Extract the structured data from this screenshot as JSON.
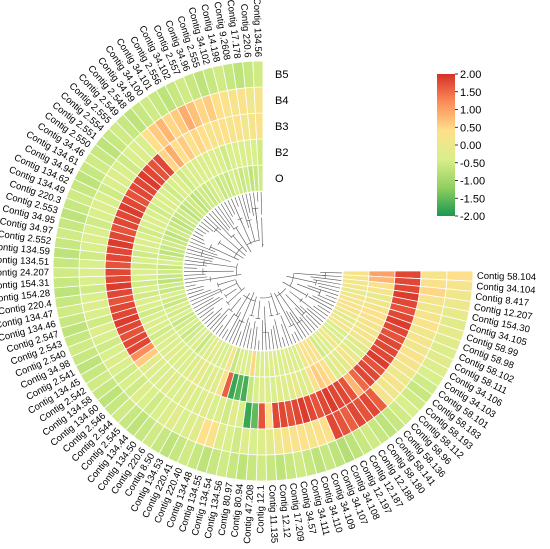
{
  "chart_data": {
    "type": "heatmap",
    "title": "",
    "rings": [
      "O",
      "B2",
      "B3",
      "B4",
      "B5"
    ],
    "colorbar": {
      "min": -2.0,
      "max": 2.0,
      "tick_labels": [
        "2.00",
        "1.50",
        "1.00",
        "0.50",
        "0.00",
        "-0.50",
        "-1.00",
        "-1.50",
        "-2.00"
      ],
      "colors": [
        "#1a9850",
        "#91cf60",
        "#d9ef8b",
        "#fee08b",
        "#fc8d59",
        "#d73027"
      ],
      "legend_position": "top-right"
    },
    "labels": [
      "Contig 58.104",
      "Contig 34.104",
      "Contig 8.417",
      "Contig 12.207",
      "Contig 154.30",
      "Contig 34.105",
      "Contig 58.99",
      "Contig 58.98",
      "Contig 58.102",
      "Contig 58.111",
      "Contig 34.106",
      "Contig 34.103",
      "Contig 58.101",
      "Contig 58.183",
      "Contig 58.193",
      "Contig 58.112",
      "Contig 58.96",
      "Contig 58.136",
      "Contig 58.141",
      "Contig 58.180",
      "Contig 12.188",
      "Contig 12.187",
      "Contig 12.197",
      "Contig 34.108",
      "Contig 34.107",
      "Contig 34.109",
      "Contig 34.110",
      "Contig 34.111",
      "Contig 34.57",
      "Contig 17.209",
      "Contig 12.12",
      "Contig 11.135",
      "Contig 12.1",
      "Contig 47.208",
      "Contig 80.94",
      "Contig 80.97",
      "Contig 134.56",
      "Contig 134.54",
      "Contig 134.55",
      "Contig 134.48",
      "Contig 220.40",
      "Contig 220.41",
      "Contig 134.53",
      "Contig 8.50",
      "Contig 220.6",
      "Contig 134.50",
      "Contig 134.44",
      "Contig 2.545",
      "Contig 2.544",
      "Contig 2.546",
      "Contig 134.60",
      "Contig 134.58",
      "Contig 2.542",
      "Contig 134.45",
      "Contig 2.541",
      "Contig 34.98",
      "Contig 2.540",
      "Contig 2.543",
      "Contig 2.547",
      "Contig 134.46",
      "Contig 134.47",
      "Contig 220.4",
      "Contig 154.28",
      "Contig 154.31",
      "Contig 24.207",
      "Contig 134.51",
      "Contig 134.59",
      "Contig 2.552",
      "Contig 34.97",
      "Contig 34.95",
      "Contig 2.553",
      "Contig 220.3",
      "Contig 134.49",
      "Contig 134.62",
      "Contig 34.94",
      "Contig 134.61",
      "Contig 34.46",
      "Contig 2.550",
      "Contig 2.551",
      "Contig 2.554",
      "Contig 2.555",
      "Contig 2.549",
      "Contig 2.548",
      "Contig 34.99",
      "Contig 34.100",
      "Contig 34.101",
      "Contig 2.556",
      "Contig 34.102",
      "Contig 2.557",
      "Contig 34.96",
      "Contig 2.555",
      "Contig 34.102",
      "Contig 14.198",
      "Contig 9.2608",
      "Contig 17.178",
      "Contig 220.6",
      "Contig 134.56"
    ],
    "values": {
      "O": [
        0.3,
        0.1,
        0.2,
        0.1,
        -0.1,
        0.2,
        0.1,
        0.3,
        0.2,
        0.1,
        -0.2,
        0.1,
        0.2,
        -0.4,
        -0.3,
        -0.2,
        0.1,
        -0.3,
        -0.2,
        -0.5,
        0.3,
        0.2,
        0.4,
        0.1,
        -0.4,
        -0.3,
        -0.2,
        -0.3,
        -0.4,
        -0.3,
        -0.2,
        -0.4,
        -0.3,
        -0.4,
        0.5,
        -0.3,
        -0.4,
        -0.3,
        -0.6,
        0.2,
        -0.3,
        -0.4,
        -0.3,
        -0.2,
        -0.3,
        -0.4,
        -0.6,
        -0.3,
        -0.4,
        -0.5,
        -0.6,
        -0.4,
        -0.5,
        -0.6,
        -0.4,
        -0.5,
        -0.3,
        -0.6,
        -0.5,
        -0.4,
        -0.6,
        -0.5,
        -0.7,
        -0.6,
        -0.5,
        -0.6,
        -0.4,
        -0.5,
        -0.7,
        -0.6,
        -0.5,
        -0.6,
        -0.7,
        -0.5,
        -0.6,
        -0.7,
        -0.6,
        -0.5,
        -0.7,
        -0.6,
        -0.5,
        -0.7,
        -0.6,
        -0.5,
        -0.6,
        -0.5,
        -0.4,
        -0.6,
        -0.5,
        -0.6,
        -0.4,
        -0.5,
        -0.6,
        -0.5,
        -0.7,
        -0.6,
        -0.5
      ],
      "B2": [
        1.0,
        0.8,
        0.3,
        0.2,
        -0.1,
        0.1,
        0.2,
        0.4,
        0.3,
        0.2,
        0.1,
        0.2,
        0.1,
        -0.2,
        -0.3,
        -0.1,
        0.2,
        -0.2,
        -0.1,
        -0.3,
        0.4,
        0.5,
        0.6,
        0.3,
        -0.2,
        -0.3,
        -0.1,
        -0.2,
        -0.3,
        -0.2,
        -0.4,
        -0.3,
        -0.2,
        -0.4,
        -0.6,
        -1.7,
        -1.6,
        -1.8,
        1.6,
        0.2,
        -0.3,
        -0.2,
        -0.4,
        -0.1,
        -0.3,
        -0.2,
        -0.4,
        -0.3,
        -0.4,
        -0.2,
        -0.4,
        -0.3,
        -0.4,
        -0.5,
        -0.4,
        -0.3,
        -0.4,
        -0.5,
        -0.4,
        -0.3,
        -0.5,
        -0.4,
        -0.5,
        -0.4,
        -0.3,
        -0.5,
        -0.4,
        -0.5,
        -0.4,
        -0.3,
        -0.4,
        -0.5,
        -0.4,
        -0.3,
        -0.4,
        -0.5,
        -0.4,
        -0.3,
        -0.4,
        -0.5,
        -0.4,
        -0.3,
        -0.5,
        -0.4,
        -0.3,
        -0.4,
        -0.3,
        -0.4,
        -0.3,
        -0.4,
        -0.5,
        -0.4,
        -0.3,
        -0.4,
        -0.3,
        -0.4,
        -0.5
      ],
      "B3": [
        1.8,
        1.8,
        1.8,
        1.9,
        1.8,
        1.7,
        1.8,
        1.9,
        1.8,
        1.7,
        1.8,
        1.8,
        1.8,
        1.9,
        1.7,
        1.8,
        1.8,
        1.5,
        0.8,
        1.7,
        1.8,
        1.8,
        1.9,
        1.8,
        1.7,
        1.8,
        1.9,
        1.8,
        1.7,
        1.8,
        1.8,
        0.4,
        1.7,
        -1.5,
        -1.8,
        -0.4,
        -0.2,
        -0.5,
        -0.3,
        -0.4,
        -0.2,
        -0.3,
        -0.4,
        -0.2,
        -0.3,
        -0.4,
        -0.2,
        -0.3,
        -0.4,
        -0.3,
        -0.2,
        0.6,
        1.2,
        1.8,
        1.8,
        1.7,
        1.8,
        1.9,
        1.8,
        1.8,
        1.7,
        1.8,
        1.9,
        1.8,
        1.8,
        1.7,
        1.8,
        1.8,
        1.9,
        1.8,
        1.7,
        1.8,
        1.8,
        1.9,
        1.8,
        1.7,
        1.8,
        1.8,
        1.9,
        1.8,
        1.7,
        1.8,
        0.5,
        0.9,
        0.4,
        0.6,
        0.3,
        0.5,
        0.4,
        0.2,
        0.3,
        0.4,
        0.2,
        0.3,
        0.1,
        0.2,
        0.3
      ],
      "B4": [
        0.2,
        0.3,
        0.5,
        0.2,
        0.1,
        0.2,
        0.3,
        0.1,
        0.2,
        0.1,
        0.3,
        0.2,
        0.1,
        0.0,
        0.2,
        0.1,
        0.2,
        1.6,
        1.8,
        1.7,
        1.8,
        1.6,
        1.7,
        1.8,
        0.4,
        0.3,
        0.2,
        0.4,
        0.3,
        0.2,
        0.1,
        -0.2,
        -0.3,
        -0.4,
        -0.3,
        -0.5,
        -0.4,
        -0.3,
        0.3,
        0.4,
        -0.2,
        -0.3,
        -0.4,
        -0.2,
        -0.3,
        -0.4,
        -0.5,
        -0.4,
        -0.3,
        -0.5,
        -0.4,
        -0.5,
        -0.4,
        -0.3,
        -0.4,
        -0.5,
        -0.4,
        -0.3,
        -0.5,
        -0.4,
        -0.3,
        -0.4,
        -0.5,
        -0.4,
        -0.3,
        -0.4,
        -0.5,
        -0.4,
        -0.3,
        -0.4,
        -0.5,
        -0.4,
        -0.3,
        -0.4,
        -0.5,
        -0.4,
        -0.3,
        -0.4,
        -0.5,
        -0.4,
        -0.3,
        -0.4,
        0.4,
        0.6,
        0.8,
        0.5,
        0.6,
        0.9,
        0.7,
        0.5,
        0.6,
        0.4,
        0.3,
        0.2,
        0.3,
        0.1,
        0.2
      ],
      "B5": [
        0.4,
        0.2,
        0.1,
        0.0,
        -0.1,
        -0.2,
        -0.1,
        -0.2,
        -0.3,
        -0.2,
        -0.3,
        -0.4,
        -0.5,
        -0.6,
        -0.5,
        -0.4,
        -0.5,
        -0.6,
        -0.7,
        -0.6,
        -0.5,
        -0.6,
        -0.7,
        -0.8,
        -0.7,
        -0.6,
        -0.7,
        -0.6,
        -0.5,
        -0.6,
        -0.7,
        -0.6,
        -0.5,
        -0.6,
        -0.7,
        -0.6,
        -0.5,
        -0.6,
        -0.7,
        -0.6,
        -0.5,
        -0.6,
        -0.7,
        -0.6,
        -0.5,
        -0.6,
        -0.7,
        -0.6,
        -0.5,
        -0.6,
        -0.7,
        -0.6,
        -0.5,
        -0.6,
        -0.7,
        -0.6,
        -0.5,
        -0.6,
        -0.7,
        -0.6,
        -0.5,
        -0.6,
        -0.7,
        -0.6,
        -0.5,
        -0.6,
        -0.7,
        -0.6,
        -0.5,
        -0.6,
        -0.7,
        -0.6,
        -0.5,
        -0.6,
        -0.7,
        -0.6,
        -0.5,
        -0.6,
        -0.7,
        -0.6,
        -0.5,
        -0.6,
        -0.7,
        -0.6,
        -0.5,
        -0.6,
        -0.7,
        -0.6,
        -0.5,
        -0.6,
        -0.7,
        -0.6,
        -0.5,
        -0.6,
        -0.7,
        -0.6,
        -0.5
      ]
    }
  }
}
